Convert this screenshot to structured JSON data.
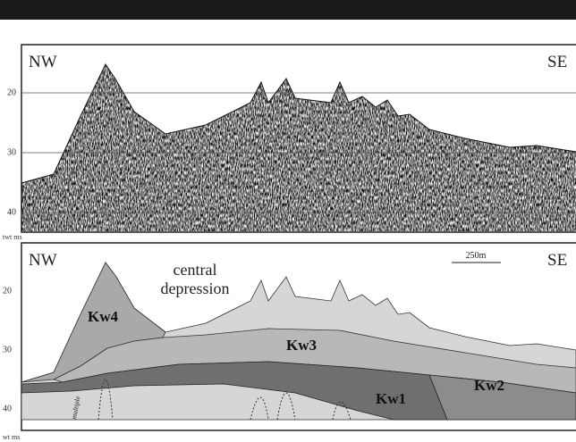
{
  "top_panel": {
    "left_label": "NW",
    "right_label": "SE",
    "y_ticks": [
      20,
      30,
      40
    ],
    "y_unit": "twt ms"
  },
  "bottom_panel": {
    "left_label": "NW",
    "right_label": "SE",
    "annotation": "central depression",
    "units": [
      "Kw4",
      "Kw3",
      "Kw1",
      "Kw2"
    ],
    "scale_bar": "250m",
    "multiple_label": "multiple",
    "y_ticks": [
      20,
      30,
      40
    ],
    "y_unit": "wt ms"
  }
}
